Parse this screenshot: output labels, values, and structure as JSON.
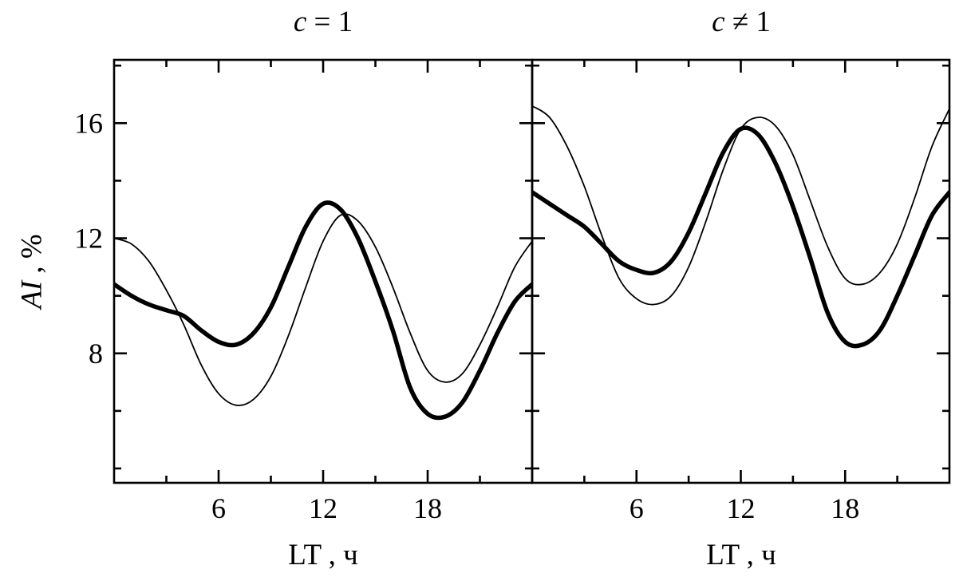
{
  "figure": {
    "background": "#ffffff",
    "axis_color": "#000000"
  },
  "axes": {
    "ylabel": "AI , %",
    "ylabel_var": "AI",
    "ylabel_rest": " , %"
  },
  "chart_data": [
    {
      "type": "line",
      "title": "c = 1",
      "title_var": "c",
      "title_rest": " = 1",
      "xlabel": "LT , ч",
      "ylabel": "AI , %",
      "xlim": [
        0,
        24
      ],
      "ylim": [
        3.5,
        18.2
      ],
      "xticks": [
        6,
        12,
        18
      ],
      "yticks": [
        8,
        12,
        16
      ],
      "xminor": [
        3,
        9,
        15,
        21
      ],
      "yminor": [
        4,
        6,
        10,
        14,
        18
      ],
      "grid": false,
      "legend": "none",
      "x": [
        0,
        1,
        2,
        3,
        4,
        5,
        6,
        7,
        8,
        9,
        10,
        11,
        12,
        13,
        14,
        15,
        16,
        17,
        18,
        19,
        20,
        21,
        22,
        23,
        24
      ],
      "series": [
        {
          "name": "thick",
          "values": [
            10.4,
            10.0,
            9.7,
            9.5,
            9.3,
            8.8,
            8.4,
            8.3,
            8.7,
            9.6,
            11.0,
            12.4,
            13.2,
            13.0,
            12.0,
            10.5,
            8.8,
            6.8,
            5.9,
            5.8,
            6.3,
            7.4,
            8.7,
            9.8,
            10.4
          ]
        },
        {
          "name": "thin",
          "values": [
            12.0,
            11.8,
            11.2,
            10.2,
            9.0,
            7.6,
            6.6,
            6.2,
            6.4,
            7.2,
            8.6,
            10.3,
            11.9,
            12.8,
            12.6,
            11.7,
            10.3,
            8.7,
            7.4,
            7.0,
            7.3,
            8.3,
            9.6,
            11.0,
            11.9
          ]
        }
      ]
    },
    {
      "type": "line",
      "title": "c ≠ 1",
      "title_var": "c",
      "title_rest": " ≠ 1",
      "xlabel": "LT , ч",
      "ylabel": "AI , %",
      "xlim": [
        0,
        24
      ],
      "ylim": [
        3.5,
        18.2
      ],
      "xticks": [
        6,
        12,
        18
      ],
      "yticks": [
        8,
        12,
        16
      ],
      "xminor": [
        3,
        9,
        15,
        21
      ],
      "yminor": [
        4,
        6,
        10,
        14,
        18
      ],
      "grid": false,
      "legend": "none",
      "x": [
        0,
        1,
        2,
        3,
        4,
        5,
        6,
        7,
        8,
        9,
        10,
        11,
        12,
        13,
        14,
        15,
        16,
        17,
        18,
        19,
        20,
        21,
        22,
        23,
        24
      ],
      "series": [
        {
          "name": "thick",
          "values": [
            13.6,
            13.2,
            12.8,
            12.4,
            11.8,
            11.2,
            10.9,
            10.8,
            11.2,
            12.2,
            13.6,
            15.0,
            15.8,
            15.6,
            14.6,
            13.1,
            11.3,
            9.4,
            8.4,
            8.3,
            8.8,
            10.0,
            11.4,
            12.8,
            13.6
          ]
        },
        {
          "name": "thin",
          "values": [
            16.6,
            16.2,
            15.2,
            13.8,
            12.1,
            10.6,
            9.9,
            9.7,
            10.0,
            11.0,
            12.6,
            14.4,
            15.8,
            16.2,
            15.9,
            14.9,
            13.3,
            11.7,
            10.6,
            10.4,
            10.8,
            11.8,
            13.4,
            15.2,
            16.5
          ]
        }
      ]
    }
  ]
}
